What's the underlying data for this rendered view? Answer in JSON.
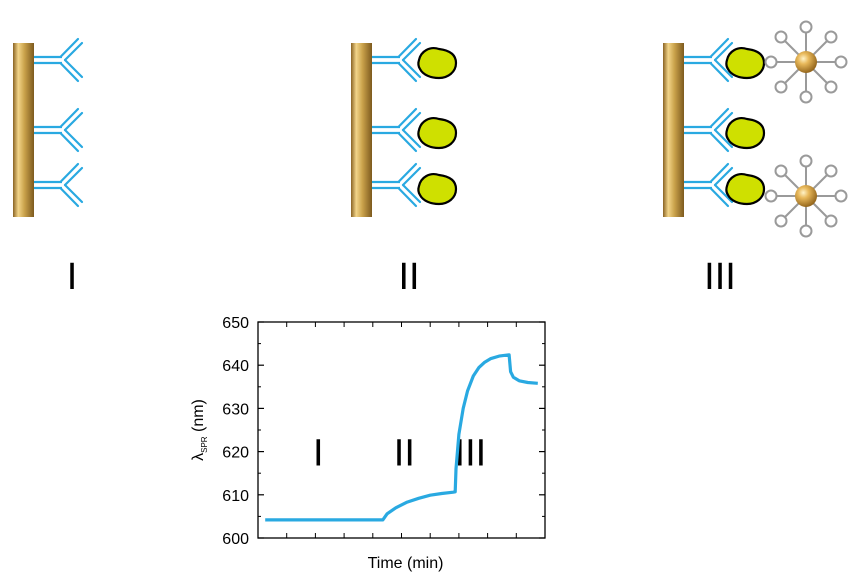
{
  "stages": [
    {
      "roman": "I",
      "antigen": false,
      "nanoparticles": 0
    },
    {
      "roman": "II",
      "antigen": true,
      "nanoparticles": 0
    },
    {
      "roman": "III",
      "antigen": true,
      "nanoparticles": 2
    }
  ],
  "colors": {
    "gold_surface": "#c9a14a",
    "antibody": "#29a9e1",
    "antigen": "#cfe000",
    "nanoparticle_linker": "#9a9a9a",
    "nanoparticle_core": "#d8a23c",
    "curve": "#29a9e1"
  },
  "icons": [
    "gold-substrate-icon",
    "antibody-icon",
    "antigen-icon",
    "gold-nanoparticle-icon"
  ],
  "chart_data": {
    "type": "line",
    "xlabel": "Time (min)",
    "ylabel_symbol": "λ",
    "ylabel_subscript": "SPR",
    "ylabel_unit": "(nm)",
    "ylim": [
      600,
      650
    ],
    "yticks": [
      600,
      610,
      620,
      630,
      640,
      650
    ],
    "xlim": [
      0,
      10
    ],
    "x_tick_labels_shown": false,
    "phase_labels": [
      {
        "text": "I",
        "x": 2.1,
        "y": 620
      },
      {
        "text": "II",
        "x": 5.1,
        "y": 620
      },
      {
        "text": "III",
        "x": 7.4,
        "y": 620
      }
    ],
    "series": [
      {
        "x": [
          0.25,
          1,
          2,
          3,
          4,
          4.35,
          4.5,
          4.8,
          5.2,
          5.6,
          6.0,
          6.4,
          6.8,
          6.87,
          6.9,
          7.0,
          7.15,
          7.3,
          7.5,
          7.7,
          7.9,
          8.1,
          8.4,
          8.75,
          8.8,
          8.9,
          9.1,
          9.4,
          9.75
        ],
        "y": [
          604.2,
          604.2,
          604.2,
          604.2,
          604.2,
          604.2,
          605.6,
          607.0,
          608.3,
          609.2,
          609.9,
          610.3,
          610.6,
          610.7,
          616,
          624,
          630,
          634,
          637.5,
          639.5,
          640.7,
          641.5,
          642.1,
          642.4,
          638.5,
          637.2,
          636.4,
          636.0,
          635.8
        ]
      }
    ]
  }
}
